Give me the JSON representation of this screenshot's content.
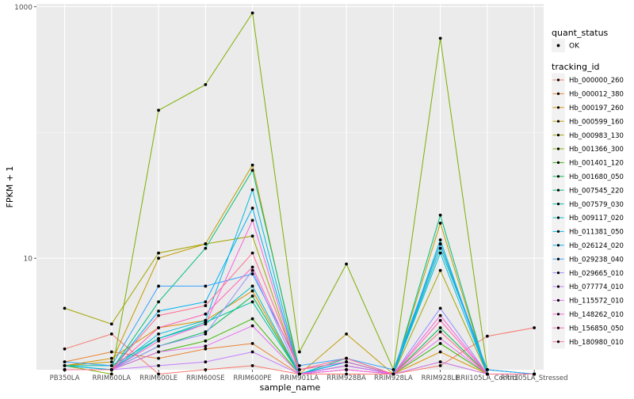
{
  "chart_data": {
    "type": "line",
    "title": "",
    "xlabel": "sample_name",
    "ylabel": "FPKM + 1",
    "y_scale": "log10",
    "ylim": [
      1.3,
      1050
    ],
    "y_ticks": [
      10,
      1000
    ],
    "y_tick_labels": [
      "10",
      "1000"
    ],
    "grid": true,
    "legend_position": "right",
    "categories": [
      "PB350LA",
      "RRIM600LA",
      "RRIM600LE",
      "RRIM600SE",
      "RRIM600PE",
      "RRIM901LA",
      "RRIM928BA",
      "RRIM928LA",
      "RRIM928LE",
      "RRII105LA_Control",
      "RRII105LA_Stressed"
    ],
    "shape_legend": {
      "title": "quant_status",
      "items": [
        "OK"
      ]
    },
    "color_legend_title": "tracking_id",
    "series": [
      {
        "name": "Hb_000000_260",
        "color": "#F8766D",
        "values": [
          1.9,
          2.5,
          1.2,
          1.3,
          1.4,
          1.2,
          1.2,
          1.2,
          1.4,
          2.4,
          2.8
        ]
      },
      {
        "name": "Hb_000012_380",
        "color": "#EA8331",
        "values": [
          1.5,
          1.8,
          1.6,
          1.9,
          2.1,
          1.2,
          1.5,
          1.2,
          1.5,
          1.2,
          1.2
        ]
      },
      {
        "name": "Hb_000197_260",
        "color": "#D89000",
        "values": [
          1.4,
          1.6,
          2.8,
          3.2,
          5.5,
          1.2,
          1.4,
          1.2,
          1.8,
          1.2,
          1.2
        ]
      },
      {
        "name": "Hb_000599_160",
        "color": "#C09B00",
        "values": [
          1.4,
          1.5,
          10.0,
          13.0,
          55.0,
          1.2,
          2.5,
          1.2,
          19.0,
          1.2,
          1.2
        ]
      },
      {
        "name": "Hb_000983_130",
        "color": "#A3A500",
        "values": [
          4.0,
          3.0,
          11.0,
          13.0,
          15.0,
          1.2,
          1.4,
          1.2,
          8.0,
          1.2,
          1.2
        ]
      },
      {
        "name": "Hb_001366_300",
        "color": "#7CAE00",
        "values": [
          1.4,
          1.2,
          150.0,
          240.0,
          890.0,
          1.8,
          9.0,
          1.3,
          560.0,
          1.3,
          1.2
        ]
      },
      {
        "name": "Hb_001401_120",
        "color": "#39B600",
        "values": [
          1.3,
          1.3,
          1.8,
          2.2,
          3.3,
          1.2,
          1.3,
          1.2,
          2.1,
          1.2,
          1.2
        ]
      },
      {
        "name": "Hb_001680_050",
        "color": "#00BB4E",
        "values": [
          1.3,
          1.3,
          2.0,
          2.6,
          5.0,
          1.2,
          1.4,
          1.2,
          2.8,
          1.2,
          1.2
        ]
      },
      {
        "name": "Hb_007545_220",
        "color": "#00BF7D",
        "values": [
          1.3,
          1.3,
          4.5,
          12.0,
          50.0,
          1.3,
          1.5,
          1.2,
          22.0,
          1.2,
          1.2
        ]
      },
      {
        "name": "Hb_007579_030",
        "color": "#00C1A3",
        "values": [
          1.4,
          1.4,
          2.3,
          3.1,
          4.5,
          1.2,
          1.6,
          1.2,
          12.0,
          1.3,
          1.2
        ]
      },
      {
        "name": "Hb_009117_020",
        "color": "#00BFC4",
        "values": [
          1.4,
          1.3,
          2.3,
          3.0,
          6.0,
          1.2,
          1.4,
          1.2,
          14.0,
          1.2,
          1.2
        ]
      },
      {
        "name": "Hb_011381_050",
        "color": "#00BAE0",
        "values": [
          1.4,
          1.3,
          2.5,
          3.2,
          35.0,
          1.2,
          1.5,
          1.2,
          11.0,
          1.2,
          1.2
        ]
      },
      {
        "name": "Hb_026124_020",
        "color": "#00B0F6",
        "values": [
          1.3,
          1.3,
          3.8,
          4.5,
          25.0,
          1.2,
          1.5,
          1.2,
          13.0,
          1.2,
          1.2
        ]
      },
      {
        "name": "Hb_029238_040",
        "color": "#35A2FF",
        "values": [
          1.5,
          1.4,
          6.0,
          6.0,
          7.5,
          1.4,
          1.6,
          1.3,
          13.0,
          1.3,
          1.2
        ]
      },
      {
        "name": "Hb_029665_010",
        "color": "#9590FF",
        "values": [
          1.3,
          1.3,
          2.0,
          2.5,
          8.0,
          1.2,
          1.4,
          1.2,
          4.0,
          1.2,
          1.2
        ]
      },
      {
        "name": "Hb_077774_010",
        "color": "#C77CFF",
        "values": [
          1.3,
          1.3,
          1.4,
          1.5,
          1.8,
          1.2,
          1.3,
          1.2,
          1.5,
          1.2,
          1.2
        ]
      },
      {
        "name": "Hb_115572_010",
        "color": "#E76BF3",
        "values": [
          1.3,
          1.3,
          1.8,
          2.0,
          2.9,
          1.2,
          1.4,
          1.2,
          2.3,
          1.2,
          1.2
        ]
      },
      {
        "name": "Hb_148262_010",
        "color": "#FA62DB",
        "values": [
          1.3,
          1.3,
          2.2,
          3.0,
          20.0,
          1.2,
          1.3,
          1.2,
          3.5,
          1.2,
          1.2
        ]
      },
      {
        "name": "Hb_156850_050",
        "color": "#FF62BC",
        "values": [
          1.3,
          1.3,
          2.8,
          3.6,
          8.5,
          1.3,
          1.5,
          1.2,
          3.2,
          1.2,
          1.2
        ]
      },
      {
        "name": "Hb_180980_010",
        "color": "#FF6C91",
        "values": [
          1.3,
          1.3,
          3.5,
          4.2,
          11.0,
          1.3,
          1.6,
          1.2,
          2.6,
          1.2,
          1.2
        ]
      }
    ]
  }
}
